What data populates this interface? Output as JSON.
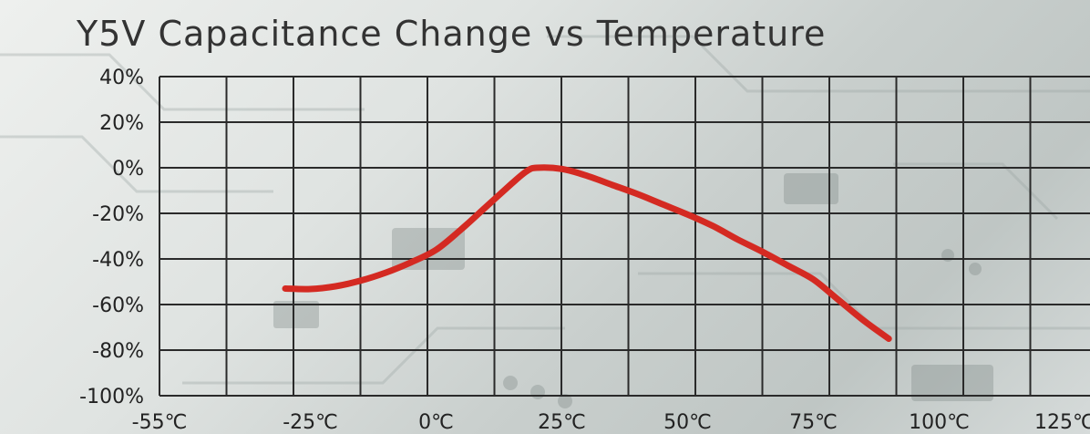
{
  "chart_data": {
    "type": "line",
    "title": "Y5V Capacitance Change vs Temperature",
    "xlabel": "",
    "ylabel": "",
    "xlim": [
      -55,
      130
    ],
    "ylim": [
      -100,
      40
    ],
    "x_ticks": [
      {
        "value": -55,
        "label": "-55℃"
      },
      {
        "value": -25,
        "label": "-25℃"
      },
      {
        "value": 0,
        "label": "0℃"
      },
      {
        "value": 25,
        "label": "25℃"
      },
      {
        "value": 50,
        "label": "50℃"
      },
      {
        "value": 75,
        "label": "75℃"
      },
      {
        "value": 100,
        "label": "100℃"
      },
      {
        "value": 125,
        "label": "125℃"
      }
    ],
    "y_ticks": [
      {
        "value": 40,
        "label": "40%"
      },
      {
        "value": 20,
        "label": "20%"
      },
      {
        "value": 0,
        "label": "0%"
      },
      {
        "value": -20,
        "label": "-20%"
      },
      {
        "value": -40,
        "label": "-40%"
      },
      {
        "value": -60,
        "label": "-60%"
      },
      {
        "value": -80,
        "label": "-80%"
      },
      {
        "value": -100,
        "label": "-100%"
      }
    ],
    "grid": true,
    "series": [
      {
        "color": "#d42a22",
        "x": [
          -30,
          -25,
          -20,
          -15,
          -10,
          -5,
          0,
          5,
          10,
          15,
          18,
          20,
          25,
          30,
          35,
          40,
          45,
          50,
          55,
          60,
          65,
          70,
          75,
          80,
          85,
          90
        ],
        "y": [
          -53,
          -53.2,
          -52,
          -49.5,
          -46,
          -41.5,
          -36,
          -27,
          -17,
          -7,
          -1.5,
          0,
          -0.5,
          -3.5,
          -7.5,
          -11.5,
          -16,
          -20.5,
          -25.5,
          -31.5,
          -37,
          -43,
          -49,
          -58,
          -67,
          -75
        ],
        "values": [
          -53,
          -53.2,
          -52,
          -49.5,
          -46,
          -41.5,
          -36,
          -27,
          -17,
          -7,
          -1.5,
          0,
          -0.5,
          -3.5,
          -7.5,
          -11.5,
          -16,
          -20.5,
          -25.5,
          -31.5,
          -37,
          -43,
          -49,
          -58,
          -67,
          -75
        ]
      }
    ]
  }
}
